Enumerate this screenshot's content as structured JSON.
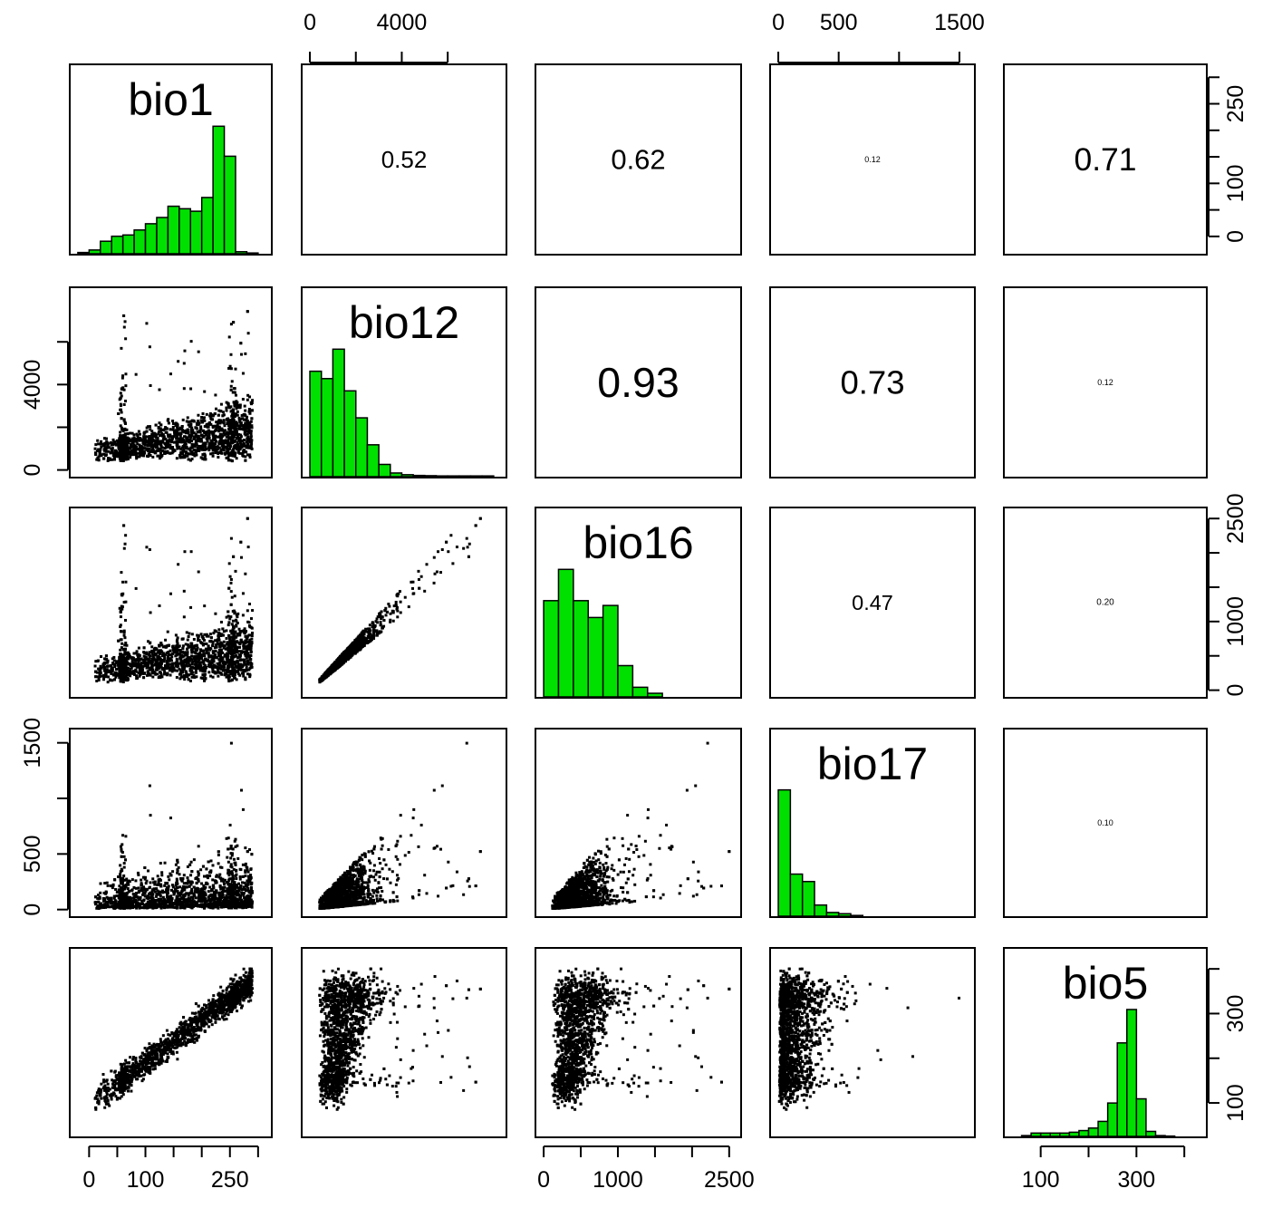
{
  "chart_data": {
    "type": "scatter",
    "matrix": "pairs",
    "variables": [
      "bio1",
      "bio12",
      "bio16",
      "bio17",
      "bio5"
    ],
    "colors": {
      "histogram": "#00e000",
      "points": "#000000"
    },
    "ranges": {
      "bio1": [
        -20,
        310
      ],
      "bio12": [
        0,
        8200
      ],
      "bio16": [
        0,
        2550
      ],
      "bio17": [
        0,
        1560
      ],
      "bio5": [
        40,
        430
      ]
    },
    "ticks": {
      "bio1": [
        0,
        50,
        100,
        150,
        200,
        250,
        300
      ],
      "bio12": [
        0,
        2000,
        4000,
        6000
      ],
      "bio16": [
        0,
        500,
        1000,
        1500,
        2000,
        2500
      ],
      "bio17": [
        0,
        500,
        1000,
        1500
      ],
      "bio5": [
        100,
        200,
        300,
        400
      ]
    },
    "tick_labels": {
      "bio1": [
        "0",
        "100",
        "250"
      ],
      "bio12": [
        "0",
        "4000"
      ],
      "bio16": [
        "0",
        "1000",
        "2500"
      ],
      "bio17": [
        "0",
        "500",
        "1500"
      ],
      "bio5": [
        "100",
        "300"
      ]
    },
    "correlations": [
      {
        "a": "bio1",
        "b": "bio12",
        "value": "0.52"
      },
      {
        "a": "bio1",
        "b": "bio16",
        "value": "0.62"
      },
      {
        "a": "bio1",
        "b": "bio17",
        "value": "0.12"
      },
      {
        "a": "bio1",
        "b": "bio5",
        "value": "0.71"
      },
      {
        "a": "bio12",
        "b": "bio16",
        "value": "0.93"
      },
      {
        "a": "bio12",
        "b": "bio17",
        "value": "0.73"
      },
      {
        "a": "bio12",
        "b": "bio5",
        "value": "0.12"
      },
      {
        "a": "bio16",
        "b": "bio17",
        "value": "0.47"
      },
      {
        "a": "bio16",
        "b": "bio5",
        "value": "0.20"
      },
      {
        "a": "bio17",
        "b": "bio5",
        "value": "0.10"
      }
    ],
    "histograms": {
      "bio1": {
        "breaks": [
          -20,
          0,
          20,
          40,
          60,
          80,
          100,
          120,
          140,
          160,
          180,
          200,
          220,
          240,
          260,
          280,
          300
        ],
        "heights": [
          0.5,
          1.5,
          5,
          7,
          7.5,
          9.5,
          12,
          14.5,
          19,
          18,
          17,
          22.5,
          51,
          39,
          0.8,
          0.3
        ]
      },
      "bio12": {
        "breaks": [
          0,
          500,
          1000,
          1500,
          2000,
          2500,
          3000,
          3500,
          4000,
          4500,
          5000,
          5500,
          6000,
          6500,
          7000,
          7500,
          8000
        ],
        "heights": [
          43,
          40,
          52,
          35,
          24,
          13,
          5,
          1.5,
          0.8,
          0.5,
          0.4,
          0.3,
          0.3,
          0.3,
          0.3,
          0.3
        ]
      },
      "bio16": {
        "breaks": [
          0,
          200,
          400,
          600,
          800,
          1000,
          1200,
          1400,
          1600
        ],
        "heights": [
          40,
          53,
          40,
          33,
          38,
          13,
          4,
          1.5
        ]
      },
      "bio17": {
        "breaks": [
          0,
          100,
          200,
          300,
          400,
          500,
          600,
          700
        ],
        "heights": [
          51,
          17,
          14,
          4.5,
          1.5,
          1,
          0.3
        ]
      },
      "bio5": {
        "breaks": [
          60,
          80,
          100,
          120,
          140,
          160,
          180,
          200,
          220,
          240,
          260,
          280,
          300,
          320,
          340,
          360,
          380
        ],
        "heights": [
          0.5,
          2,
          2,
          2,
          2,
          2.5,
          3.5,
          5,
          9,
          20,
          56,
          76,
          22.5,
          3,
          0.5,
          0.2
        ]
      }
    }
  }
}
